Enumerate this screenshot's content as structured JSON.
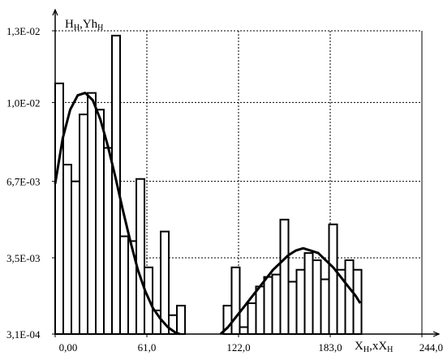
{
  "chart_data": {
    "type": "bar",
    "ylabel": "H",
    "ylabel_sub": "H",
    "ylabel2": ",Yh",
    "ylabel2_sub": "H",
    "xlabel": "X",
    "xlabel_sub": "H",
    "xlabel2": ",xX",
    "xlabel2_sub": "H",
    "xlim": [
      0,
      244
    ],
    "ylim": [
      0.00031,
      0.013
    ],
    "x_ticks": [
      0,
      61,
      122,
      183,
      244
    ],
    "x_tick_labels": [
      "0,00",
      "61,0",
      "122,0",
      "183,0",
      "244,0"
    ],
    "y_ticks": [
      0.00031,
      0.0035,
      0.0067,
      0.01,
      0.013
    ],
    "y_tick_labels": [
      "3,1E-04",
      "3,5E-03",
      "6,7E-03",
      "1,0E-02",
      "1,3E-02"
    ],
    "grid": true,
    "bar_width": 5.4,
    "bars": [
      {
        "x": 0.0,
        "value": 0.0108
      },
      {
        "x": 5.4,
        "value": 0.0074
      },
      {
        "x": 10.8,
        "value": 0.0067
      },
      {
        "x": 16.2,
        "value": 0.0095
      },
      {
        "x": 21.6,
        "value": 0.0104
      },
      {
        "x": 27.0,
        "value": 0.0097
      },
      {
        "x": 32.4,
        "value": 0.0081
      },
      {
        "x": 37.8,
        "value": 0.0128
      },
      {
        "x": 43.2,
        "value": 0.0044
      },
      {
        "x": 48.6,
        "value": 0.0042
      },
      {
        "x": 54.0,
        "value": 0.0068
      },
      {
        "x": 59.4,
        "value": 0.0031
      },
      {
        "x": 64.8,
        "value": 0.0013
      },
      {
        "x": 70.2,
        "value": 0.0046
      },
      {
        "x": 75.6,
        "value": 0.0011
      },
      {
        "x": 81.0,
        "value": 0.0015
      },
      {
        "x": 112.0,
        "value": 0.0015
      },
      {
        "x": 117.4,
        "value": 0.0031
      },
      {
        "x": 122.8,
        "value": 0.0006
      },
      {
        "x": 128.2,
        "value": 0.0016
      },
      {
        "x": 133.6,
        "value": 0.0023
      },
      {
        "x": 139.0,
        "value": 0.0027
      },
      {
        "x": 144.4,
        "value": 0.0028
      },
      {
        "x": 149.8,
        "value": 0.0051
      },
      {
        "x": 155.2,
        "value": 0.0025
      },
      {
        "x": 160.6,
        "value": 0.003
      },
      {
        "x": 166.0,
        "value": 0.0037
      },
      {
        "x": 171.4,
        "value": 0.0034
      },
      {
        "x": 176.8,
        "value": 0.0026
      },
      {
        "x": 182.2,
        "value": 0.0049
      },
      {
        "x": 187.6,
        "value": 0.003
      },
      {
        "x": 193.0,
        "value": 0.0034
      },
      {
        "x": 198.4,
        "value": 0.003
      }
    ],
    "fitted_curve": {
      "segments": [
        {
          "x": [
            0,
            5,
            10,
            15,
            20,
            25,
            30,
            35,
            40,
            45,
            50,
            55,
            60,
            65,
            70,
            75,
            80,
            83
          ],
          "y": [
            0.0066,
            0.0085,
            0.0097,
            0.0103,
            0.0104,
            0.0101,
            0.0093,
            0.0082,
            0.0069,
            0.0055,
            0.0042,
            0.003,
            0.0021,
            0.0014,
            0.00095,
            0.0006,
            0.00037,
            0.00031
          ]
        },
        {
          "x": [
            110,
            115,
            120,
            125,
            130,
            135,
            140,
            145,
            150,
            155,
            160,
            165,
            170,
            175,
            180,
            185,
            190,
            195,
            200,
            203
          ],
          "y": [
            0.00031,
            0.0006,
            0.001,
            0.0014,
            0.0018,
            0.0022,
            0.0026,
            0.003,
            0.0033,
            0.0036,
            0.0038,
            0.0039,
            0.0038,
            0.0037,
            0.0034,
            0.0031,
            0.0027,
            0.0023,
            0.0019,
            0.0016
          ]
        }
      ]
    }
  }
}
